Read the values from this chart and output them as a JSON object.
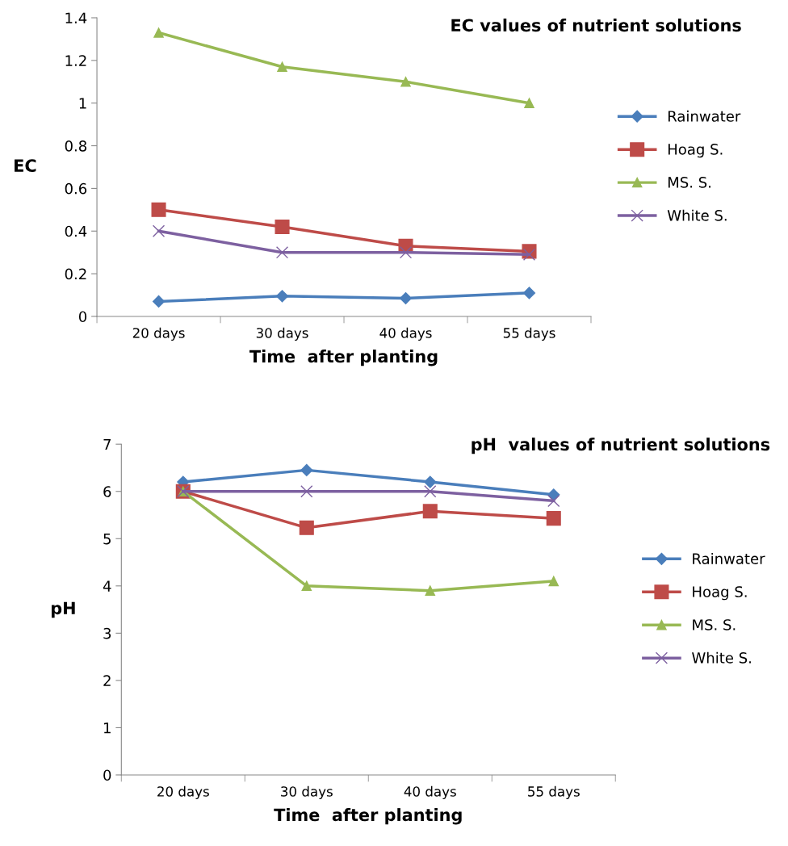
{
  "chart_data": [
    {
      "type": "line",
      "title": "EC values of nutrient solutions",
      "xlabel": "Time  after planting",
      "ylabel": "EC",
      "categories": [
        "20 days",
        "30 days",
        "40 days",
        "55 days"
      ],
      "ylim": [
        0,
        1.4
      ],
      "yticks": [
        0,
        0.2,
        0.4,
        0.6,
        0.8,
        1,
        1.2,
        1.4
      ],
      "grid": false,
      "legend": "right",
      "series": [
        {
          "name": "Rainwater",
          "color": "#4a7ebb",
          "marker": "diamond",
          "values": [
            0.07,
            0.095,
            0.085,
            0.11
          ]
        },
        {
          "name": "Hoag S.",
          "color": "#be4b48",
          "marker": "square",
          "values": [
            0.5,
            0.42,
            0.33,
            0.305
          ]
        },
        {
          "name": "MS. S.",
          "color": "#98b954",
          "marker": "triangle",
          "values": [
            1.33,
            1.17,
            1.1,
            1.0
          ]
        },
        {
          "name": "White S.",
          "color": "#7d60a0",
          "marker": "cross",
          "values": [
            0.4,
            0.3,
            0.3,
            0.29
          ]
        }
      ]
    },
    {
      "type": "line",
      "title": "pH  values of nutrient solutions",
      "xlabel": "Time  after planting",
      "ylabel": "pH",
      "categories": [
        "20 days",
        "30 days",
        "40 days",
        "55 days"
      ],
      "ylim": [
        0,
        7
      ],
      "yticks": [
        0,
        1,
        2,
        3,
        4,
        5,
        6,
        7
      ],
      "grid": false,
      "legend": "right",
      "series": [
        {
          "name": "Rainwater",
          "color": "#4a7ebb",
          "marker": "diamond",
          "values": [
            6.2,
            6.45,
            6.2,
            5.93
          ]
        },
        {
          "name": "Hoag S.",
          "color": "#be4b48",
          "marker": "square",
          "values": [
            6.0,
            5.23,
            5.58,
            5.43
          ]
        },
        {
          "name": "MS. S.",
          "color": "#98b954",
          "marker": "triangle",
          "values": [
            6.0,
            4.0,
            3.9,
            4.1
          ]
        },
        {
          "name": "White S.",
          "color": "#7d60a0",
          "marker": "cross",
          "values": [
            6.0,
            6.0,
            6.0,
            5.8
          ]
        }
      ]
    }
  ]
}
